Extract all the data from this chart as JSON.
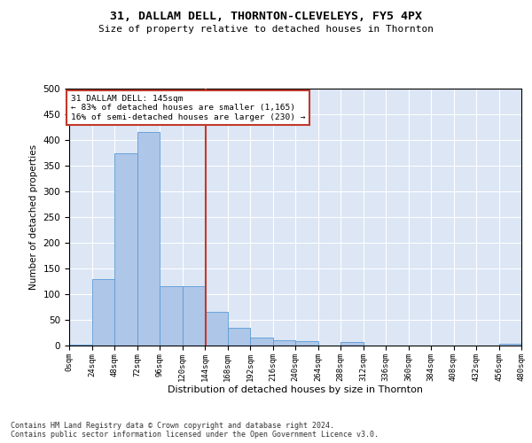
{
  "title": "31, DALLAM DELL, THORNTON-CLEVELEYS, FY5 4PX",
  "subtitle": "Size of property relative to detached houses in Thornton",
  "xlabel": "Distribution of detached houses by size in Thornton",
  "ylabel": "Number of detached properties",
  "footnote": "Contains HM Land Registry data © Crown copyright and database right 2024.\nContains public sector information licensed under the Open Government Licence v3.0.",
  "bar_edges": [
    0,
    24,
    48,
    72,
    96,
    120,
    144,
    168,
    192,
    216,
    240,
    264,
    288,
    312,
    336,
    360,
    384,
    408,
    432,
    456,
    480
  ],
  "bar_heights": [
    2,
    130,
    375,
    415,
    115,
    115,
    65,
    35,
    15,
    10,
    8,
    0,
    7,
    0,
    0,
    0,
    0,
    0,
    0,
    3
  ],
  "bar_color": "#aec6e8",
  "bar_edge_color": "#5b9bd5",
  "property_size": 145,
  "vline_color": "#c0392b",
  "annotation_text": "31 DALLAM DELL: 145sqm\n← 83% of detached houses are smaller (1,165)\n16% of semi-detached houses are larger (230) →",
  "annotation_box_color": "#c0392b",
  "annotation_text_color": "#000000",
  "background_color": "#ffffff",
  "plot_bg_color": "#dce6f5",
  "grid_color": "#ffffff",
  "ylim": [
    0,
    500
  ],
  "xlim": [
    0,
    480
  ],
  "yticks": [
    0,
    50,
    100,
    150,
    200,
    250,
    300,
    350,
    400,
    450,
    500
  ]
}
